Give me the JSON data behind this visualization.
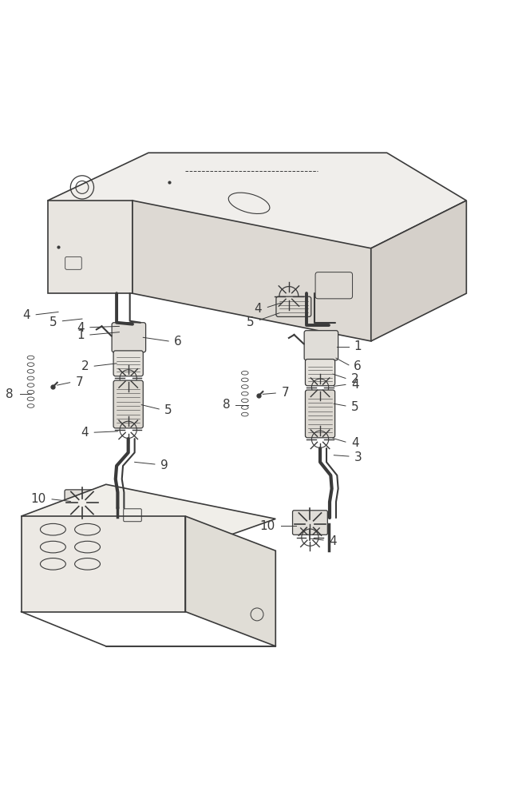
{
  "bg_color": "#ffffff",
  "line_color": "#3a3a3a",
  "line_width": 1.2,
  "label_color": "#3a3a3a",
  "label_fontsize": 11,
  "fig_width": 6.64,
  "fig_height": 10.0
}
